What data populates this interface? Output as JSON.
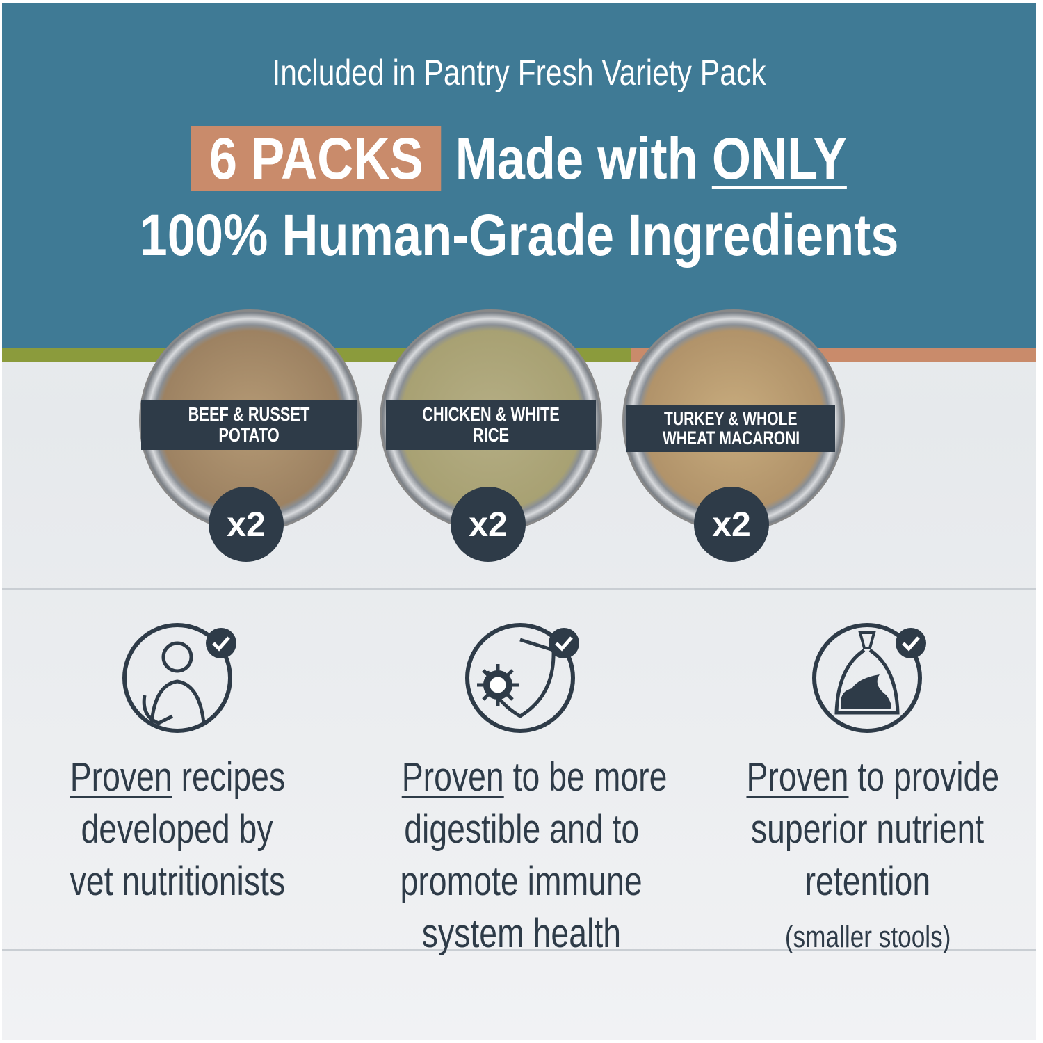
{
  "header": {
    "subtitle": "Included in Pantry Fresh Variety Pack",
    "packs_badge": "6 PACKS",
    "headline_part1": "Made with",
    "headline_emphasis": "ONLY",
    "headline_line2": "100% Human-Grade Ingredients"
  },
  "colors": {
    "banner": "#3f7a95",
    "accent_tan": "#c98b6b",
    "accent_green": "#8b9b3c",
    "text_dark": "#2e3b48"
  },
  "recipes": [
    {
      "name": "BEEF & RUSSET POTATO",
      "quantity": "x2"
    },
    {
      "name_line1": "CHICKEN & WHITE RICE",
      "quantity": "x2"
    },
    {
      "name_line1": "TURKEY & WHOLE",
      "name_line2": "WHEAT MACARONI",
      "quantity": "x2"
    }
  ],
  "features": [
    {
      "icon": "vet-with-dog-check-icon",
      "emphasis": "Proven",
      "line1_rest": " recipes",
      "line2": "developed by",
      "line3": "vet nutritionists"
    },
    {
      "icon": "shield-virus-check-icon",
      "emphasis": "Proven",
      "line1_rest": " to be more",
      "line2": "digestible and to",
      "line3": "promote immune",
      "line4": "system health"
    },
    {
      "icon": "waste-bag-check-icon",
      "emphasis": "Proven",
      "line1_rest": " to provide",
      "line2": "superior nutrient",
      "line3": "retention",
      "note": "(smaller stools)"
    }
  ]
}
